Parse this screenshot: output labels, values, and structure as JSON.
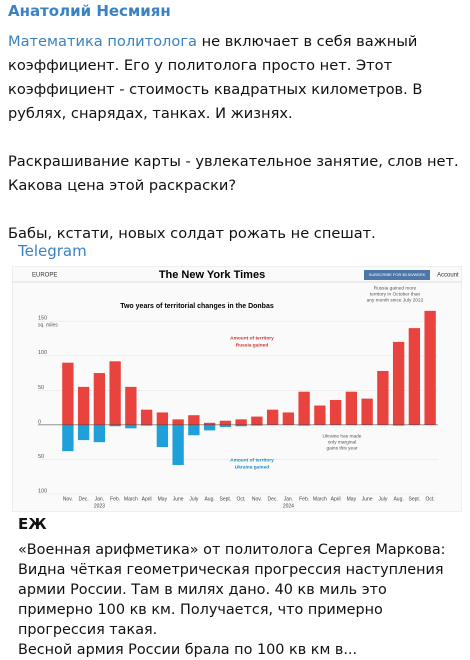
{
  "author": "Анатолий Несмиян",
  "post": {
    "link": "Математика политолога",
    "p1": " не включает в себя важный коэффициент. Его у политолога просто нет. Этот коэффициент - стоимость квадратных километров. В рублях, снарядах, танках. И жизнях.",
    "p2": "Раскрашивание карты - увлекательное занятие, слов нет. Какова цена этой раскраски?",
    "p3": "Бабы, кстати, новых солдат рожать не спешат."
  },
  "source": "Telegram",
  "chart": {
    "type": "bar",
    "section": "EUROPE",
    "logo": "The New York Times",
    "subscribe": "SUBSCRIBE FOR $0.50/WEEK",
    "account": "Account",
    "title": "Two years of territorial changes in the Donbas",
    "y_unit": "sq. miles",
    "annotations": [
      "Amount of territory",
      "Russia gained",
      "Amount of territory",
      "Ukraine gained",
      "Russia gained more",
      "territory in October than",
      "any month since July 2022",
      "Ukraine has made",
      "only marginal",
      "gains this year"
    ],
    "categories": [
      "Nov.",
      "Dec.",
      "Jan.",
      "Feb.",
      "March",
      "April",
      "May",
      "June",
      "July",
      "Aug.",
      "Sept.",
      "Oct.",
      "Nov.",
      "Dec.",
      "Jan.",
      "Feb.",
      "March",
      "April",
      "May",
      "June",
      "July",
      "Aug.",
      "Sept.",
      "Oct."
    ],
    "years": [
      "2023",
      "2024"
    ],
    "series": [
      {
        "name": "Russia gained",
        "color": "#e8433f",
        "values": [
          90,
          55,
          75,
          92,
          55,
          22,
          18,
          8,
          14,
          3,
          6,
          8,
          12,
          22,
          18,
          48,
          28,
          36,
          48,
          38,
          78,
          120,
          140,
          165
        ]
      },
      {
        "name": "Ukraine gained",
        "color": "#1fa0d8",
        "values": [
          -38,
          -22,
          -25,
          -2,
          -5,
          -1,
          -32,
          -58,
          -15,
          -8,
          -3,
          -2,
          -1,
          0,
          0,
          -1,
          0,
          0,
          0,
          0,
          0,
          -1,
          0,
          0
        ]
      }
    ],
    "ylim": [
      -100,
      172
    ],
    "yticks": [
      {
        "value": -100,
        "label": "100"
      },
      {
        "value": -50,
        "label": "50"
      },
      0,
      50,
      100,
      150
    ]
  },
  "repost": {
    "author": "ЕЖ",
    "lines": [
      "«Военная арифметика» от политолога Сергея Маркова:",
      "Видна чёткая геометрическая прогрессия наступления армии России. Там в милях дано. 40 кв миль это примерно 100 кв км. Получается, что примерно прогрессия такая.",
      "Весной армия России брала по 100 кв км в..."
    ]
  }
}
